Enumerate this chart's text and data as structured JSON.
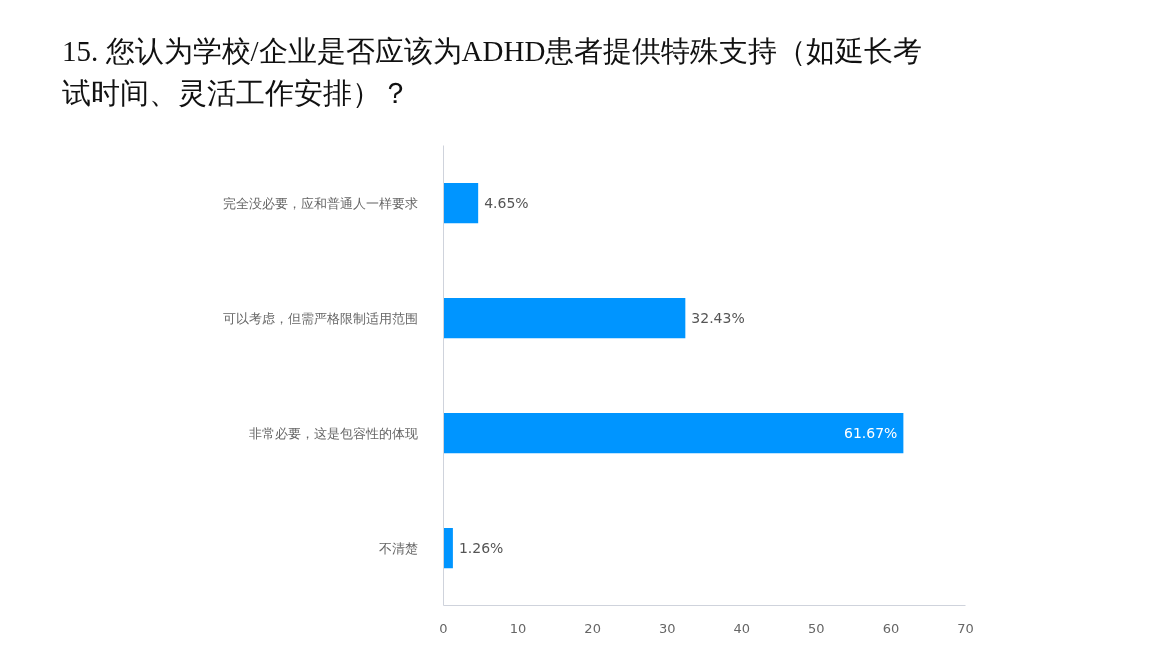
{
  "chart_data": {
    "type": "bar",
    "orientation": "horizontal",
    "title": "15. 您认为学校/企业是否应该为ADHD患者提供特殊支持（如延长考试时间、灵活工作安排）？",
    "categories": [
      "完全没必要，应和普通人一样要求",
      "可以考虑，但需严格限制适用范围",
      "非常必要，这是包容性的体现",
      "不清楚"
    ],
    "values": [
      4.65,
      32.43,
      61.67,
      1.26
    ],
    "value_labels": [
      "4.65%",
      "32.43%",
      "61.67%",
      "1.26%"
    ],
    "color": "#0095ff",
    "xlim": [
      0,
      70
    ],
    "xticks": [
      0,
      10,
      20,
      30,
      40,
      50,
      60,
      70
    ],
    "grid": false
  }
}
